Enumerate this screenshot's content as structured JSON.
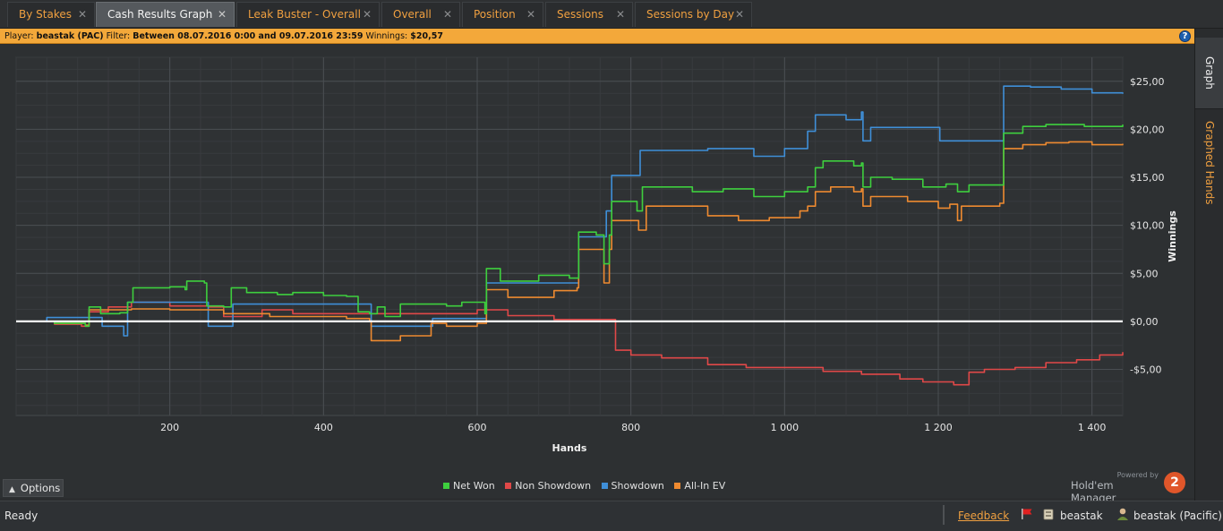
{
  "tabs": [
    {
      "label": "By Stakes",
      "close": "✕"
    },
    {
      "label": "Cash Results Graph",
      "close": "✕"
    },
    {
      "label": "Leak Buster - Overall",
      "close": "✕"
    },
    {
      "label": "Overall",
      "close": "✕"
    },
    {
      "label": "Position",
      "close": "✕"
    },
    {
      "label": "Sessions",
      "close": "✕"
    },
    {
      "label": "Sessions by Day",
      "close": "✕"
    }
  ],
  "filter": {
    "player_label": "Player:",
    "player_value": "beastak (PAC)",
    "filter_label": "Filter:",
    "filter_value": "Between 08.07.2016 0:00 and 09.07.2016 23:59",
    "winnings_label": "Winnings:",
    "winnings_value": "$20,57",
    "help": "?"
  },
  "side_tabs": {
    "graph": "Graph",
    "graphed_hands": "Graphed Hands"
  },
  "options_label": "Options",
  "powered_by": "Powered by",
  "brand_name": "Hold'em Manager",
  "brand_logo": "2",
  "status": {
    "ready": "Ready",
    "feedback": "Feedback",
    "user": "beastak",
    "user_site": "beastak (Pacific)"
  },
  "colors": {
    "net_won": "#3ecf3e",
    "non_showdown": "#e04848",
    "showdown": "#3f8fd8",
    "allin_ev": "#ee8a30",
    "accent": "#f3a83a"
  },
  "chart_data": {
    "type": "line",
    "xlabel": "Hands",
    "ylabel": "Winnings",
    "x_ticks": [
      200,
      400,
      600,
      800,
      1000,
      1200,
      1400
    ],
    "x_tick_labels": [
      "200",
      "400",
      "600",
      "800",
      "1 000",
      "1 200",
      "1 400"
    ],
    "y_ticks": [
      -5,
      0,
      5,
      10,
      15,
      20,
      25
    ],
    "y_tick_labels": [
      "-$5,00",
      "$0,00",
      "$5,00",
      "$10,00",
      "$15,00",
      "$20,00",
      "$25,00"
    ],
    "xlim": [
      0,
      1440
    ],
    "ylim": [
      -9.8,
      27.5
    ],
    "grid": true,
    "legend": "bottom-center",
    "series": [
      {
        "name": "Net Won",
        "color": "#3ecf3e",
        "points": [
          [
            0,
            0
          ],
          [
            50,
            -0.2
          ],
          [
            90,
            -0.5
          ],
          [
            95,
            1.5
          ],
          [
            110,
            0.8
          ],
          [
            135,
            0.9
          ],
          [
            145,
            2.0
          ],
          [
            152,
            3.5
          ],
          [
            200,
            3.6
          ],
          [
            220,
            3.3
          ],
          [
            222,
            4.2
          ],
          [
            245,
            4.0
          ],
          [
            248,
            1.6
          ],
          [
            270,
            1.5
          ],
          [
            280,
            3.5
          ],
          [
            300,
            3.0
          ],
          [
            340,
            2.8
          ],
          [
            360,
            3.0
          ],
          [
            400,
            2.7
          ],
          [
            430,
            2.6
          ],
          [
            445,
            1.0
          ],
          [
            460,
            0.8
          ],
          [
            470,
            1.5
          ],
          [
            480,
            0.5
          ],
          [
            500,
            1.8
          ],
          [
            560,
            1.6
          ],
          [
            580,
            2.0
          ],
          [
            600,
            2.0
          ],
          [
            610,
            0.8
          ],
          [
            612,
            5.5
          ],
          [
            630,
            4.2
          ],
          [
            680,
            4.8
          ],
          [
            720,
            4.5
          ],
          [
            730,
            4.5
          ],
          [
            732,
            9.3
          ],
          [
            755,
            9.0
          ],
          [
            765,
            6.0
          ],
          [
            772,
            9.0
          ],
          [
            775,
            12.5
          ],
          [
            800,
            12.5
          ],
          [
            808,
            11.5
          ],
          [
            815,
            14.0
          ],
          [
            860,
            14.0
          ],
          [
            880,
            13.5
          ],
          [
            920,
            13.8
          ],
          [
            960,
            13.0
          ],
          [
            1000,
            13.5
          ],
          [
            1030,
            14.0
          ],
          [
            1040,
            16.0
          ],
          [
            1050,
            16.7
          ],
          [
            1090,
            16.2
          ],
          [
            1100,
            16.5
          ],
          [
            1102,
            14.0
          ],
          [
            1112,
            15.0
          ],
          [
            1140,
            14.8
          ],
          [
            1180,
            14.0
          ],
          [
            1210,
            14.3
          ],
          [
            1225,
            13.5
          ],
          [
            1240,
            14.2
          ],
          [
            1280,
            14.2
          ],
          [
            1285,
            19.6
          ],
          [
            1310,
            20.3
          ],
          [
            1340,
            20.5
          ],
          [
            1370,
            20.5
          ],
          [
            1390,
            20.3
          ],
          [
            1440,
            20.5
          ]
        ]
      },
      {
        "name": "Non Showdown",
        "color": "#e04848",
        "points": [
          [
            0,
            0
          ],
          [
            50,
            -0.3
          ],
          [
            85,
            -0.5
          ],
          [
            95,
            1.0
          ],
          [
            120,
            1.5
          ],
          [
            150,
            2.0
          ],
          [
            200,
            1.6
          ],
          [
            250,
            1.5
          ],
          [
            270,
            0.5
          ],
          [
            320,
            1.2
          ],
          [
            360,
            0.8
          ],
          [
            420,
            0.8
          ],
          [
            480,
            0.8
          ],
          [
            540,
            0.8
          ],
          [
            600,
            1.2
          ],
          [
            640,
            0.6
          ],
          [
            700,
            0.2
          ],
          [
            780,
            -3.0
          ],
          [
            800,
            -3.5
          ],
          [
            840,
            -3.8
          ],
          [
            900,
            -4.5
          ],
          [
            950,
            -4.8
          ],
          [
            1000,
            -4.8
          ],
          [
            1050,
            -5.2
          ],
          [
            1100,
            -5.5
          ],
          [
            1150,
            -6.0
          ],
          [
            1180,
            -6.3
          ],
          [
            1220,
            -6.6
          ],
          [
            1240,
            -5.3
          ],
          [
            1260,
            -5.0
          ],
          [
            1300,
            -4.8
          ],
          [
            1340,
            -4.3
          ],
          [
            1380,
            -4.0
          ],
          [
            1410,
            -3.5
          ],
          [
            1440,
            -3.2
          ]
        ]
      },
      {
        "name": "Showdown",
        "color": "#3f8fd8",
        "points": [
          [
            0,
            0
          ],
          [
            40,
            0.4
          ],
          [
            110,
            0.4
          ],
          [
            112,
            -0.5
          ],
          [
            140,
            -1.5
          ],
          [
            145,
            2.0
          ],
          [
            230,
            2.0
          ],
          [
            250,
            -0.5
          ],
          [
            280,
            -0.5
          ],
          [
            282,
            1.8
          ],
          [
            380,
            1.8
          ],
          [
            460,
            1.8
          ],
          [
            462,
            -0.5
          ],
          [
            540,
            -0.5
          ],
          [
            542,
            0.3
          ],
          [
            560,
            0.3
          ],
          [
            610,
            0.3
          ],
          [
            612,
            4.0
          ],
          [
            720,
            4.0
          ],
          [
            732,
            8.8
          ],
          [
            765,
            8.8
          ],
          [
            768,
            11.5
          ],
          [
            775,
            15.2
          ],
          [
            810,
            15.2
          ],
          [
            812,
            17.8
          ],
          [
            900,
            18.0
          ],
          [
            960,
            17.2
          ],
          [
            1000,
            18.0
          ],
          [
            1030,
            19.8
          ],
          [
            1040,
            21.5
          ],
          [
            1080,
            21.0
          ],
          [
            1100,
            21.8
          ],
          [
            1102,
            18.8
          ],
          [
            1112,
            20.2
          ],
          [
            1200,
            20.2
          ],
          [
            1202,
            18.8
          ],
          [
            1280,
            18.8
          ],
          [
            1285,
            24.5
          ],
          [
            1320,
            24.4
          ],
          [
            1360,
            24.2
          ],
          [
            1400,
            23.8
          ],
          [
            1440,
            23.7
          ]
        ]
      },
      {
        "name": "All-In EV",
        "color": "#ee8a30",
        "points": [
          [
            0,
            0
          ],
          [
            50,
            -0.2
          ],
          [
            90,
            -0.4
          ],
          [
            95,
            1.2
          ],
          [
            150,
            1.3
          ],
          [
            200,
            1.2
          ],
          [
            250,
            1.2
          ],
          [
            270,
            0.8
          ],
          [
            330,
            0.5
          ],
          [
            380,
            0.5
          ],
          [
            430,
            0.3
          ],
          [
            460,
            0.0
          ],
          [
            462,
            -2.0
          ],
          [
            500,
            -1.5
          ],
          [
            540,
            -0.2
          ],
          [
            560,
            -0.5
          ],
          [
            600,
            -0.2
          ],
          [
            612,
            3.3
          ],
          [
            640,
            2.5
          ],
          [
            700,
            3.2
          ],
          [
            730,
            3.5
          ],
          [
            732,
            7.5
          ],
          [
            755,
            7.5
          ],
          [
            765,
            4.0
          ],
          [
            772,
            7.5
          ],
          [
            775,
            10.5
          ],
          [
            800,
            10.5
          ],
          [
            810,
            9.5
          ],
          [
            820,
            12.0
          ],
          [
            860,
            12.0
          ],
          [
            900,
            11.0
          ],
          [
            940,
            10.5
          ],
          [
            980,
            10.8
          ],
          [
            1020,
            11.5
          ],
          [
            1030,
            12.0
          ],
          [
            1040,
            13.5
          ],
          [
            1060,
            14.0
          ],
          [
            1090,
            13.5
          ],
          [
            1100,
            13.8
          ],
          [
            1102,
            12.0
          ],
          [
            1112,
            13.0
          ],
          [
            1160,
            12.5
          ],
          [
            1200,
            11.8
          ],
          [
            1215,
            12.2
          ],
          [
            1225,
            10.5
          ],
          [
            1230,
            12.0
          ],
          [
            1280,
            12.3
          ],
          [
            1285,
            18.0
          ],
          [
            1310,
            18.4
          ],
          [
            1340,
            18.6
          ],
          [
            1370,
            18.7
          ],
          [
            1400,
            18.4
          ],
          [
            1440,
            18.5
          ]
        ]
      }
    ]
  }
}
